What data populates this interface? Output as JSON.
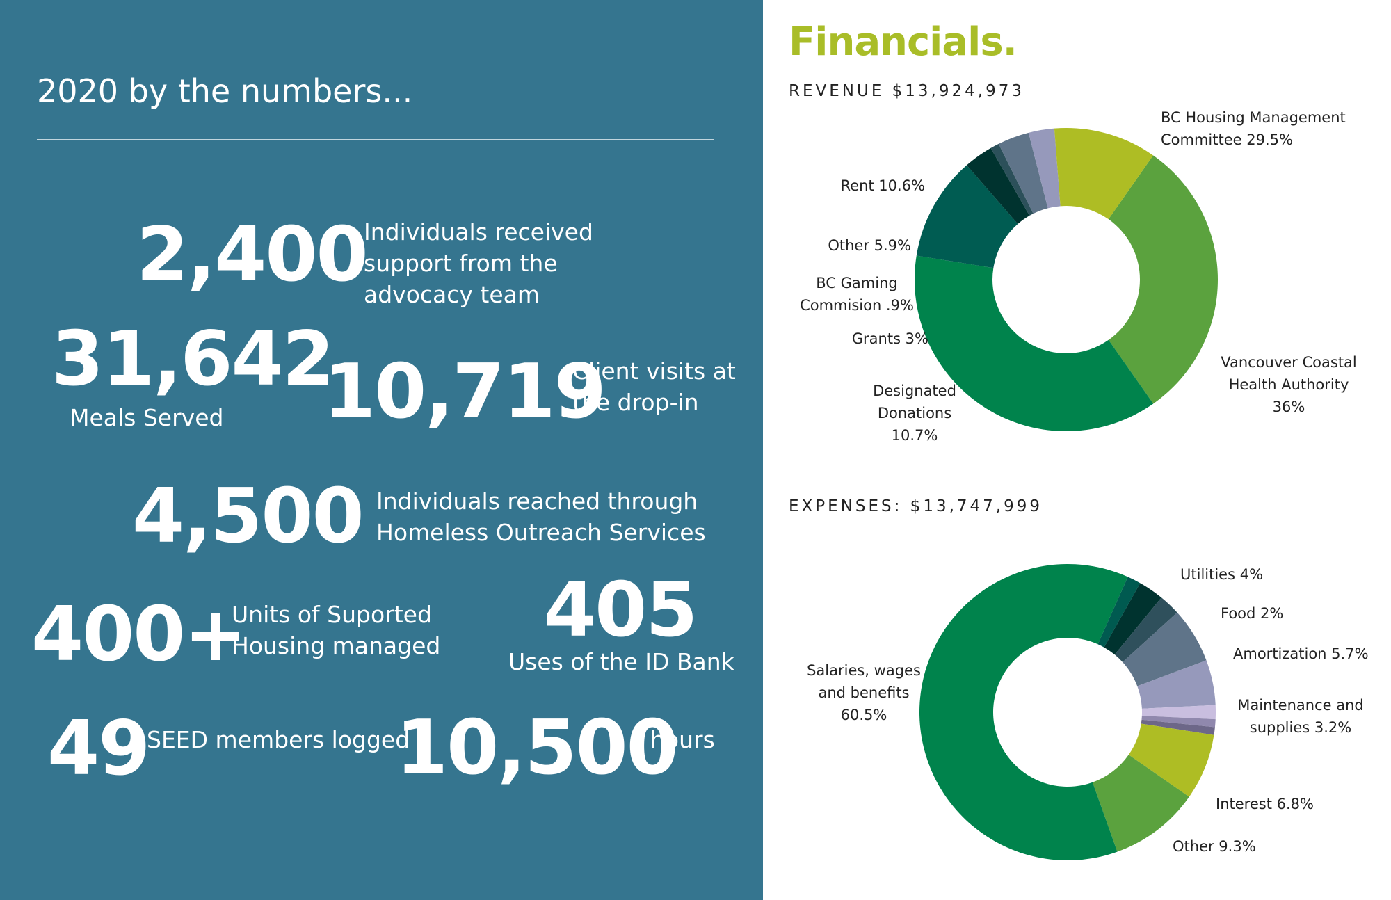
{
  "left_panel": {
    "title": "2020 by the numbers...",
    "stats": [
      {
        "value": "2,400",
        "label": "Individuals received support from the advocacy team"
      },
      {
        "value": "31,642",
        "label": "Meals Served"
      },
      {
        "value": "10,719",
        "label": "Client visits at the drop-in"
      },
      {
        "value": "4,500",
        "label": "Individuals reached through Homeless Outreach Services"
      },
      {
        "value": "400+",
        "label": "Units of Suported Housing managed"
      },
      {
        "value": "405",
        "label": "Uses of the ID Bank"
      },
      {
        "value": "49",
        "label": "SEED members logged"
      },
      {
        "value": "10,500",
        "label": "hours"
      }
    ]
  },
  "right_panel": {
    "title": "Financials."
  },
  "chart_data": [
    {
      "type": "pie",
      "title": "REVENUE $13,924,973",
      "categories": [
        "BC Housing Management Committee",
        "Vancouver Coastal Health Authority",
        "Designated Donations",
        "Grants",
        "BC Gaming Commision",
        "Other",
        "Rent"
      ],
      "values": [
        29.5,
        36,
        10.7,
        3,
        0.9,
        5.9,
        10.6
      ],
      "labels": [
        [
          "BC Housing Management",
          "Committee  29.5%"
        ],
        [
          "Vancouver Coastal",
          "Health Authority",
          "36%"
        ],
        [
          "Designated",
          "Donations",
          "10.7%"
        ],
        [
          "Grants 3%"
        ],
        [
          "BC Gaming",
          "Commision .9%"
        ],
        [
          "Other 5.9%"
        ],
        [
          "Rent 10.6%"
        ]
      ],
      "colors": [
        "#5ba23e",
        "#00834c",
        "#005c52",
        "#00332f",
        "#2c505a",
        "#5f7489",
        "#9699bb",
        "#aebd24"
      ],
      "hole": "donut"
    },
    {
      "type": "pie",
      "title": "EXPENSES: $13,747,999",
      "categories": [
        "Salaries, wages and benefits",
        "Utilities",
        "Food",
        "Amortization",
        "Maintenance and supplies",
        "Interest",
        "Other"
      ],
      "values": [
        60.5,
        4,
        2,
        5.7,
        3.2,
        6.8,
        9.3
      ],
      "labels": [
        [
          "Salaries, wages",
          "and benefits",
          "60.5%"
        ],
        [
          "Utilities 4%"
        ],
        [
          "Food 2%"
        ],
        [
          "Amortization 5.7%"
        ],
        [
          "Maintenance and",
          "supplies 3.2%"
        ],
        [
          "Interest 6.8%"
        ],
        [
          "Other 9.3%"
        ]
      ],
      "colors": [
        "#00834c",
        "#005a50",
        "#00332f",
        "#2f505c",
        "#5f7489",
        "#9699bb",
        "#c9bedf",
        "#9088ad",
        "#6d6788",
        "#aebd24",
        "#5ba23e"
      ],
      "hole": "donut"
    }
  ]
}
